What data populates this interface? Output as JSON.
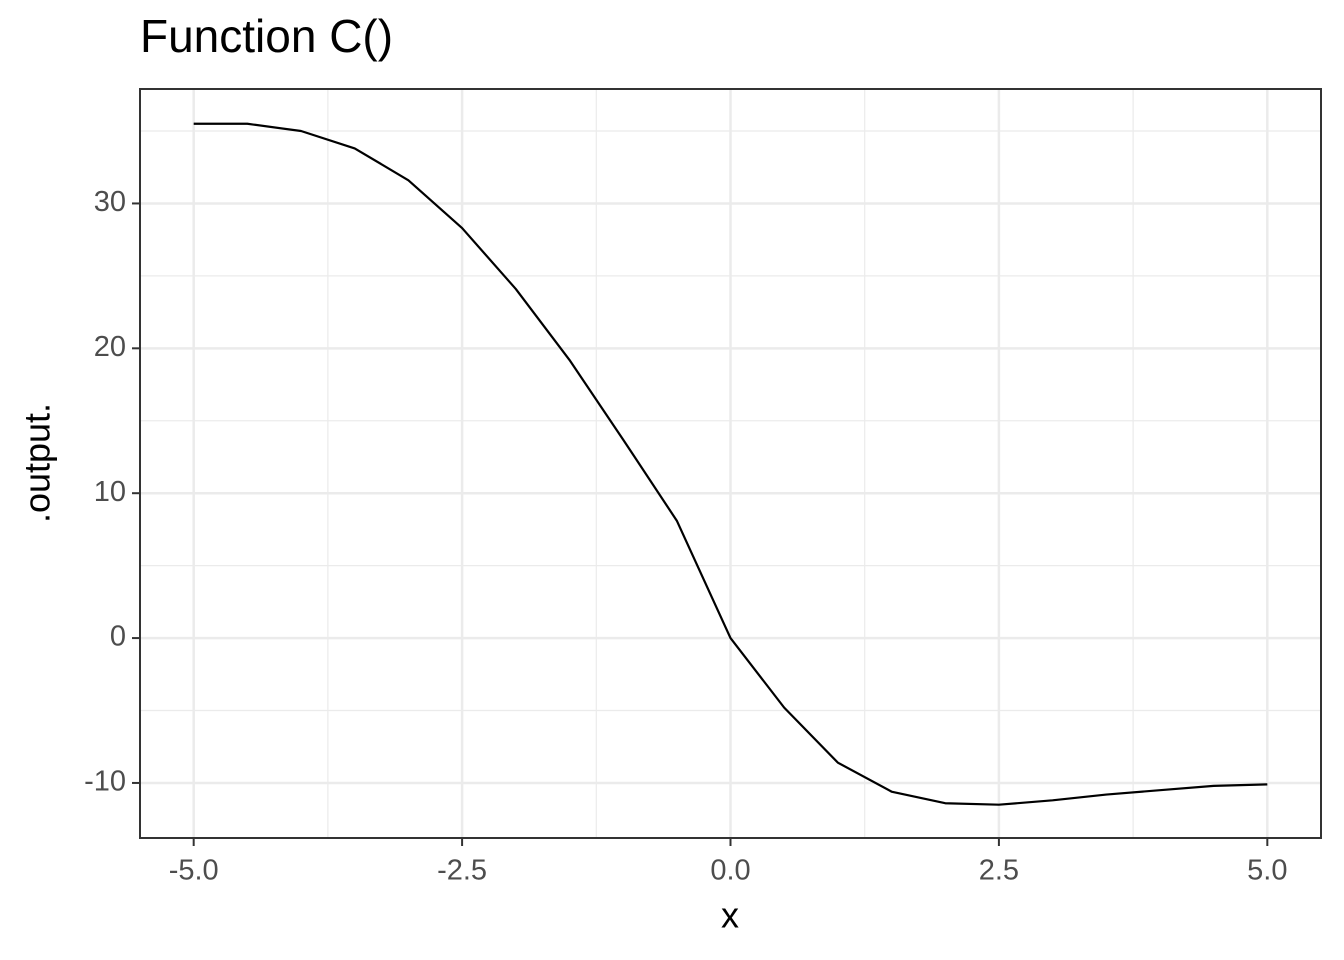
{
  "chart_data": {
    "type": "line",
    "title": "Function C()",
    "x_label": "x",
    "y_label": ".output.",
    "x": [
      -5,
      -4.5,
      -4,
      -3.5,
      -3,
      -2.5,
      -2,
      -1.5,
      -1,
      -0.5,
      0,
      0.5,
      1,
      1.5,
      2,
      2.5,
      3,
      3.5,
      4,
      4.5,
      5
    ],
    "series": [
      {
        "name": ".output.",
        "color": "#000000",
        "values": [
          35.5,
          35.5,
          35.0,
          33.8,
          31.6,
          28.3,
          24.1,
          19.2,
          13.7,
          8.1,
          0,
          -4.8,
          -8.6,
          -10.6,
          -11.4,
          -11.5,
          -11.2,
          -10.8,
          -10.5,
          -10.2,
          -10.1
        ]
      }
    ],
    "xlim": [
      -5.5,
      5.5
    ],
    "ylim": [
      -13.8,
      37.9
    ],
    "xticks": [
      {
        "value": -5,
        "label": "-5.0"
      },
      {
        "value": -2.5,
        "label": "-2.5"
      },
      {
        "value": 0,
        "label": "0.0"
      },
      {
        "value": 2.5,
        "label": "2.5"
      },
      {
        "value": 5,
        "label": "5.0"
      }
    ],
    "yticks": [
      -10,
      0,
      10,
      20,
      30
    ],
    "grid": true
  }
}
